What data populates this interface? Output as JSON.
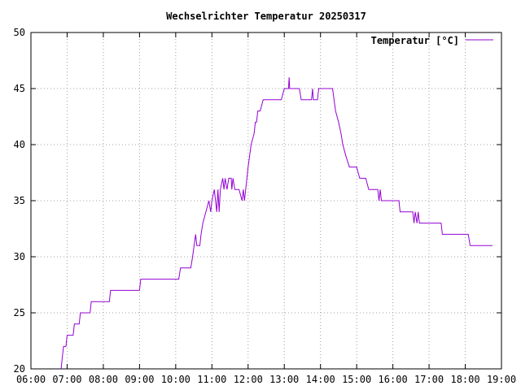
{
  "chart_data": {
    "type": "line",
    "title": "Wechselrichter Temperatur 20250317",
    "xlabel": "",
    "ylabel": "",
    "xlim": [
      "06:00",
      "19:00"
    ],
    "ylim": [
      20,
      50
    ],
    "x_ticks": [
      "06:00",
      "07:00",
      "08:00",
      "09:00",
      "10:00",
      "11:00",
      "12:00",
      "13:00",
      "14:00",
      "15:00",
      "16:00",
      "17:00",
      "18:00",
      "19:00"
    ],
    "y_ticks": [
      20,
      25,
      30,
      35,
      40,
      45,
      50
    ],
    "grid": true,
    "legend_position": "top-right",
    "series": [
      {
        "name": "Temperatur [°C]",
        "color": "#9400d3",
        "points": [
          [
            "06:50",
            20
          ],
          [
            "06:54",
            22
          ],
          [
            "06:58",
            22
          ],
          [
            "07:00",
            23
          ],
          [
            "07:10",
            23
          ],
          [
            "07:12",
            24
          ],
          [
            "07:20",
            24
          ],
          [
            "07:22",
            25
          ],
          [
            "07:38",
            25
          ],
          [
            "07:40",
            26
          ],
          [
            "08:10",
            26
          ],
          [
            "08:12",
            27
          ],
          [
            "09:00",
            27
          ],
          [
            "09:02",
            28
          ],
          [
            "10:05",
            28
          ],
          [
            "10:08",
            29
          ],
          [
            "10:25",
            29
          ],
          [
            "10:28",
            30
          ],
          [
            "10:33",
            32
          ],
          [
            "10:35",
            31
          ],
          [
            "10:40",
            31
          ],
          [
            "10:42",
            32
          ],
          [
            "10:45",
            33
          ],
          [
            "10:50",
            34
          ],
          [
            "10:55",
            35
          ],
          [
            "10:58",
            34
          ],
          [
            "11:00",
            35
          ],
          [
            "11:04",
            36
          ],
          [
            "11:06",
            35
          ],
          [
            "11:08",
            34
          ],
          [
            "11:10",
            36
          ],
          [
            "11:12",
            34
          ],
          [
            "11:14",
            36
          ],
          [
            "11:18",
            37
          ],
          [
            "11:20",
            36
          ],
          [
            "11:22",
            37
          ],
          [
            "11:25",
            36
          ],
          [
            "11:28",
            37
          ],
          [
            "11:32",
            37
          ],
          [
            "11:33",
            36
          ],
          [
            "11:35",
            37
          ],
          [
            "11:38",
            36
          ],
          [
            "11:45",
            36
          ],
          [
            "11:50",
            35
          ],
          [
            "11:52",
            36
          ],
          [
            "11:54",
            35
          ],
          [
            "11:58",
            37
          ],
          [
            "12:00",
            38
          ],
          [
            "12:05",
            40
          ],
          [
            "12:10",
            41
          ],
          [
            "12:12",
            42
          ],
          [
            "12:14",
            42
          ],
          [
            "12:16",
            43
          ],
          [
            "12:20",
            43
          ],
          [
            "12:25",
            44
          ],
          [
            "12:55",
            44
          ],
          [
            "13:00",
            45
          ],
          [
            "13:07",
            45
          ],
          [
            "13:08",
            46
          ],
          [
            "13:09",
            45
          ],
          [
            "13:25",
            45
          ],
          [
            "13:28",
            44
          ],
          [
            "13:45",
            44
          ],
          [
            "13:47",
            45
          ],
          [
            "13:48",
            44
          ],
          [
            "13:55",
            44
          ],
          [
            "13:57",
            45
          ],
          [
            "14:20",
            45
          ],
          [
            "14:25",
            43
          ],
          [
            "14:30",
            42
          ],
          [
            "14:34",
            41
          ],
          [
            "14:37",
            40
          ],
          [
            "14:42",
            39
          ],
          [
            "14:48",
            38
          ],
          [
            "15:00",
            38
          ],
          [
            "15:05",
            37
          ],
          [
            "15:15",
            37
          ],
          [
            "15:20",
            36
          ],
          [
            "15:35",
            36
          ],
          [
            "15:37",
            35
          ],
          [
            "15:39",
            36
          ],
          [
            "15:41",
            35
          ],
          [
            "16:10",
            35
          ],
          [
            "16:12",
            34
          ],
          [
            "16:33",
            34
          ],
          [
            "16:35",
            33
          ],
          [
            "16:37",
            34
          ],
          [
            "16:40",
            33
          ],
          [
            "16:42",
            34
          ],
          [
            "16:44",
            33
          ],
          [
            "17:20",
            33
          ],
          [
            "17:22",
            32
          ],
          [
            "18:05",
            32
          ],
          [
            "18:08",
            31
          ],
          [
            "18:45",
            31
          ]
        ]
      }
    ]
  }
}
